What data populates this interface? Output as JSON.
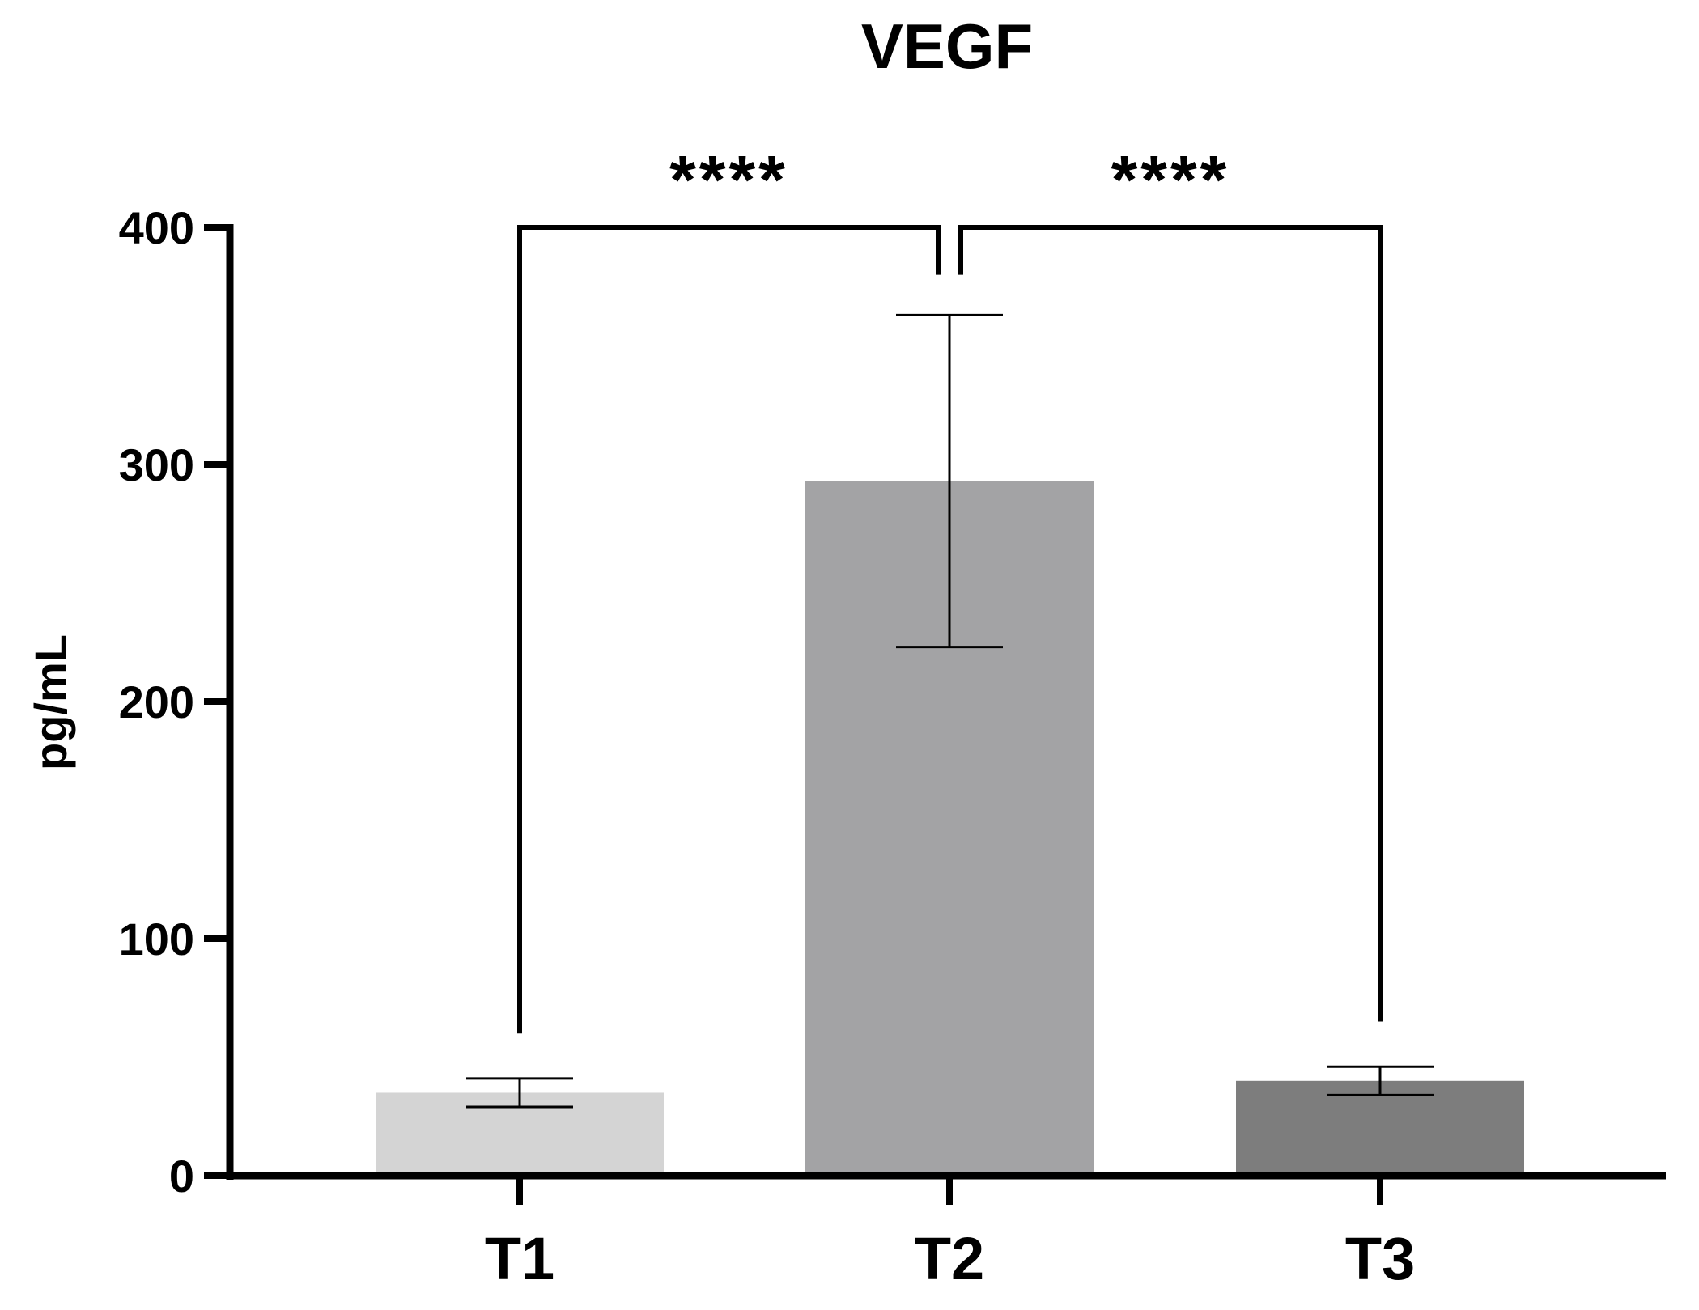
{
  "chart_data": {
    "type": "bar",
    "title": "VEGF",
    "xlabel": "",
    "ylabel": "pg/mL",
    "categories": [
      "T1",
      "T2",
      "T3"
    ],
    "values": [
      35,
      293,
      40
    ],
    "error": [
      {
        "low": 29,
        "high": 41
      },
      {
        "low": 223,
        "high": 363
      },
      {
        "low": 34,
        "high": 46
      }
    ],
    "colors": [
      "#d4d4d4",
      "#a3a3a5",
      "#7d7d7d"
    ],
    "ylim": [
      0,
      400
    ],
    "yticks": [
      0,
      100,
      200,
      300,
      400
    ],
    "ytick_labels": [
      "0",
      "100",
      "200",
      "300",
      "400"
    ],
    "grid": false,
    "significance": [
      {
        "from": "T1",
        "to": "T2",
        "label": "****",
        "y": 400,
        "left_end": 60,
        "right_end": 380
      },
      {
        "from": "T2",
        "to": "T3",
        "label": "****",
        "y": 400,
        "left_end": 380,
        "right_end": 65
      }
    ]
  }
}
